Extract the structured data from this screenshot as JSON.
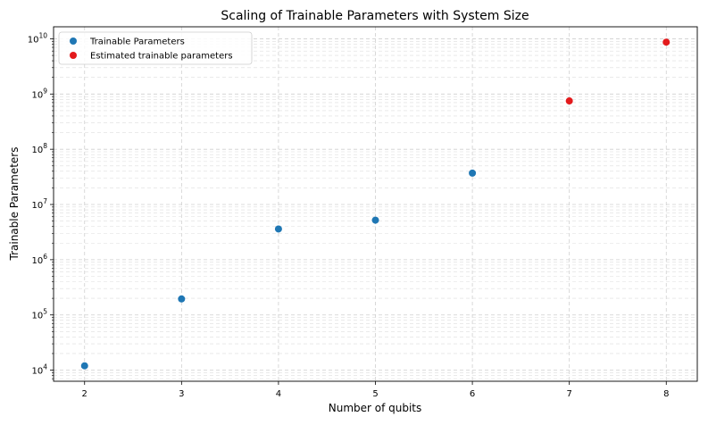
{
  "chart_data": {
    "type": "scatter",
    "title": "Scaling of Trainable Parameters with System Size",
    "xlabel": "Number of qubits",
    "ylabel": "Trainable Parameters",
    "x_ticks": [
      2,
      3,
      4,
      5,
      6,
      7,
      8
    ],
    "y_scale": "log",
    "y_ticks": [
      {
        "value": 10000,
        "base": "10",
        "exp": "4"
      },
      {
        "value": 100000,
        "base": "10",
        "exp": "5"
      },
      {
        "value": 1000000,
        "base": "10",
        "exp": "6"
      },
      {
        "value": 10000000,
        "base": "10",
        "exp": "7"
      },
      {
        "value": 100000000,
        "base": "10",
        "exp": "8"
      },
      {
        "value": 1000000000,
        "base": "10",
        "exp": "9"
      },
      {
        "value": 10000000000,
        "base": "10",
        "exp": "10"
      }
    ],
    "xlim": [
      1.68,
      8.32
    ],
    "ylim": [
      6300,
      16500000000
    ],
    "grid": true,
    "legend_position": "top-left",
    "series": [
      {
        "name": "Trainable Parameters",
        "color": "#1f77b4",
        "points": [
          {
            "x": 2,
            "y": 12000
          },
          {
            "x": 3,
            "y": 195000
          },
          {
            "x": 4,
            "y": 3600000
          },
          {
            "x": 5,
            "y": 5200000
          },
          {
            "x": 6,
            "y": 37000000
          }
        ]
      },
      {
        "name": "Estimated trainable parameters",
        "color": "#e31a1c",
        "points": [
          {
            "x": 7,
            "y": 750000000
          },
          {
            "x": 8,
            "y": 8700000000
          }
        ]
      }
    ]
  }
}
